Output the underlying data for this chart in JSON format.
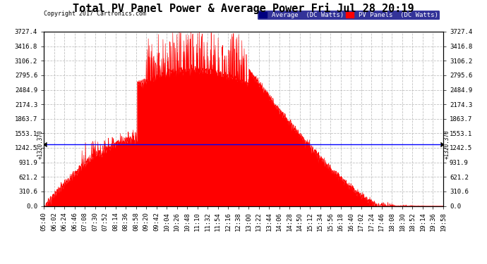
{
  "title": "Total PV Panel Power & Average Power Fri Jul 28 20:19",
  "copyright": "Copyright 2017 Cartronics.com",
  "legend_avg_label": "Average  (DC Watts)",
  "legend_pv_label": "PV Panels  (DC Watts)",
  "avg_value": 1320.37,
  "y_max": 3727.4,
  "y_min": 0.0,
  "y_ticks": [
    0.0,
    310.6,
    621.2,
    931.9,
    1242.5,
    1553.1,
    1863.7,
    2174.3,
    2484.9,
    2795.6,
    3106.2,
    3416.8,
    3727.4
  ],
  "x_start_min": 340,
  "x_end_min": 1198,
  "tick_interval_min": 22,
  "avg_line_color": "#0000ff",
  "pv_fill_color": "#ff0000",
  "background_color": "#ffffff",
  "grid_color": "#bbbbbb",
  "title_fontsize": 11,
  "tick_fontsize": 6.5,
  "legend_bg_color": "#000080",
  "legend_pv_color": "#ff0000",
  "figwidth": 6.9,
  "figheight": 3.75,
  "dpi": 100
}
